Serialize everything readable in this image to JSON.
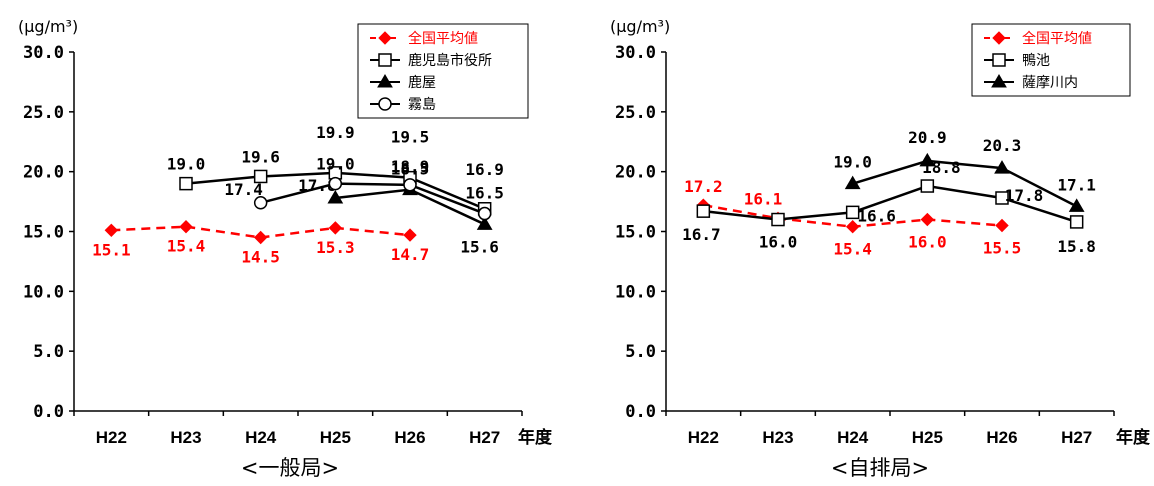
{
  "chart_data": [
    {
      "type": "line",
      "title": "<一般局>",
      "unit": "(μg/m³)",
      "xlabel": "年度",
      "categories": [
        "H22",
        "H23",
        "H24",
        "H25",
        "H26",
        "H27"
      ],
      "ylim": [
        0,
        30
      ],
      "yticks": [
        "0.0",
        "5.0",
        "10.0",
        "15.0",
        "20.0",
        "25.0",
        "30.0"
      ],
      "legend_position": "top-right",
      "series": [
        {
          "name": "全国平均値",
          "color": "#ff0000",
          "dashed": true,
          "marker": "diamond",
          "values": [
            15.1,
            15.4,
            14.5,
            15.3,
            14.7,
            null
          ],
          "labels": [
            "15.1",
            "15.4",
            "14.5",
            "15.3",
            "14.7",
            ""
          ]
        },
        {
          "name": "鹿児島市役所",
          "color": "#000000",
          "dashed": false,
          "marker": "square",
          "values": [
            null,
            19.0,
            19.6,
            19.9,
            19.5,
            16.9
          ],
          "labels": [
            "",
            "19.0",
            "19.6",
            "19.9",
            "19.5",
            "16.9"
          ]
        },
        {
          "name": "鹿屋",
          "color": "#000000",
          "dashed": false,
          "marker": "triangle",
          "values": [
            null,
            null,
            null,
            17.8,
            18.5,
            15.6
          ],
          "labels": [
            "",
            "",
            "",
            "17.8",
            "18.5",
            "15.6"
          ]
        },
        {
          "name": "霧島",
          "color": "#000000",
          "dashed": false,
          "marker": "circle",
          "values": [
            null,
            null,
            17.4,
            19.0,
            18.9,
            16.5
          ],
          "labels": [
            "",
            "",
            "17.4",
            "19.0",
            "18.9",
            "16.5"
          ]
        }
      ]
    },
    {
      "type": "line",
      "title": "<自排局>",
      "unit": "(μg/m³)",
      "xlabel": "年度",
      "categories": [
        "H22",
        "H23",
        "H24",
        "H25",
        "H26",
        "H27"
      ],
      "ylim": [
        0,
        30
      ],
      "yticks": [
        "0.0",
        "5.0",
        "10.0",
        "15.0",
        "20.0",
        "25.0",
        "30.0"
      ],
      "legend_position": "top-right",
      "series": [
        {
          "name": "全国平均値",
          "color": "#ff0000",
          "dashed": true,
          "marker": "diamond",
          "values": [
            17.2,
            16.1,
            15.4,
            16.0,
            15.5,
            null
          ],
          "labels": [
            "17.2",
            "16.1",
            "15.4",
            "16.0",
            "15.5",
            ""
          ]
        },
        {
          "name": "鴨池",
          "color": "#000000",
          "dashed": false,
          "marker": "square",
          "values": [
            16.7,
            16.0,
            16.6,
            18.8,
            17.8,
            15.8
          ],
          "labels": [
            "16.7",
            "16.0",
            "16.6",
            "18.8",
            "17.8",
            "15.8"
          ]
        },
        {
          "name": "薩摩川内",
          "color": "#000000",
          "dashed": false,
          "marker": "triangle",
          "values": [
            null,
            null,
            19.0,
            20.9,
            20.3,
            17.1
          ],
          "labels": [
            "",
            "",
            "19.0",
            "20.9",
            "20.3",
            "17.1"
          ]
        }
      ]
    }
  ]
}
